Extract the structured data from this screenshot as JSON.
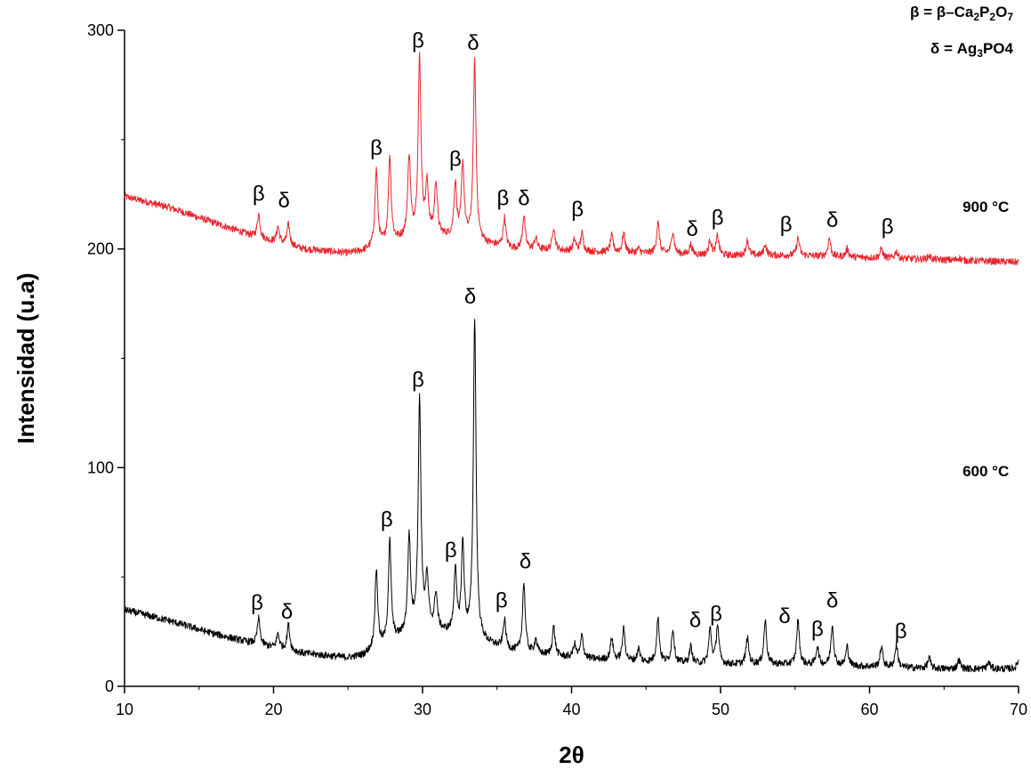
{
  "chart_data": {
    "type": "line",
    "title": "",
    "xlabel": "2θ",
    "ylabel": "Intensidad (u.a)",
    "xlim": [
      10,
      70
    ],
    "ylim": [
      0,
      300
    ],
    "x_ticks": [
      "10",
      "20",
      "30",
      "40",
      "50",
      "60",
      "70"
    ],
    "y_ticks": [
      "0",
      "100",
      "200",
      "300"
    ],
    "legend": {
      "beta": {
        "symbol": "β",
        "equals": "=",
        "prefix": "β–Ca",
        "s1": "2",
        "mid1": "P",
        "s2": "2",
        "mid2": "O",
        "s3": "7"
      },
      "delta": {
        "symbol": "δ",
        "equals": "= Ag",
        "s1": "3",
        "rest": "PO4"
      }
    },
    "series": [
      {
        "name": "900 °C",
        "color": "#e8262e",
        "baseline": [
          [
            10,
            224
          ],
          [
            13,
            219
          ],
          [
            16,
            212
          ],
          [
            19,
            205
          ],
          [
            22,
            200
          ],
          [
            25,
            198
          ],
          [
            26,
            199
          ],
          [
            30,
            207
          ],
          [
            33,
            204
          ],
          [
            36,
            200
          ],
          [
            40,
            199
          ],
          [
            45,
            198
          ],
          [
            50,
            197
          ],
          [
            55,
            197
          ],
          [
            60,
            196
          ],
          [
            65,
            195
          ],
          [
            70,
            194
          ]
        ],
        "peaks": [
          [
            19,
            216
          ],
          [
            20.3,
            210
          ],
          [
            21,
            211
          ],
          [
            26.9,
            236
          ],
          [
            27.8,
            242
          ],
          [
            29.1,
            242
          ],
          [
            29.8,
            287
          ],
          [
            30.3,
            228
          ],
          [
            30.9,
            230
          ],
          [
            32.2,
            229
          ],
          [
            32.7,
            238
          ],
          [
            33.5,
            285
          ],
          [
            35.5,
            214
          ],
          [
            36.8,
            215
          ],
          [
            37.6,
            205
          ],
          [
            38.8,
            210
          ],
          [
            40.2,
            204
          ],
          [
            40.7,
            207
          ],
          [
            42.7,
            206
          ],
          [
            43.5,
            207
          ],
          [
            44.5,
            200
          ],
          [
            45.8,
            212
          ],
          [
            46.8,
            208
          ],
          [
            48,
            202
          ],
          [
            49.3,
            204
          ],
          [
            49.8,
            206
          ],
          [
            51.8,
            204
          ],
          [
            53,
            202
          ],
          [
            55.2,
            205
          ],
          [
            57.3,
            205
          ],
          [
            58.5,
            200
          ],
          [
            60.8,
            200
          ],
          [
            61.8,
            199
          ],
          [
            64,
            197
          ],
          [
            66,
            196
          ]
        ]
      },
      {
        "name": "600 °C",
        "color": "#000000",
        "baseline": [
          [
            10,
            35
          ],
          [
            13,
            30
          ],
          [
            16,
            24
          ],
          [
            19,
            19
          ],
          [
            22,
            15
          ],
          [
            25,
            13
          ],
          [
            26,
            14
          ],
          [
            30,
            27
          ],
          [
            33,
            22
          ],
          [
            36,
            16
          ],
          [
            40,
            13
          ],
          [
            45,
            11
          ],
          [
            50,
            10
          ],
          [
            55,
            10
          ],
          [
            60,
            9
          ],
          [
            65,
            8
          ],
          [
            70,
            8
          ]
        ],
        "peaks": [
          [
            19,
            31
          ],
          [
            20.3,
            24
          ],
          [
            21,
            28
          ],
          [
            26.9,
            53
          ],
          [
            27.8,
            66
          ],
          [
            29.1,
            68
          ],
          [
            29.8,
            130
          ],
          [
            30.3,
            48
          ],
          [
            30.9,
            42
          ],
          [
            32.2,
            52
          ],
          [
            32.7,
            64
          ],
          [
            33.5,
            168
          ],
          [
            35.5,
            30
          ],
          [
            36.8,
            47
          ],
          [
            37.6,
            21
          ],
          [
            38.8,
            27
          ],
          [
            40.2,
            19
          ],
          [
            40.7,
            23
          ],
          [
            42.7,
            22
          ],
          [
            43.5,
            26
          ],
          [
            44.5,
            17
          ],
          [
            45.8,
            31
          ],
          [
            46.8,
            26
          ],
          [
            48,
            18
          ],
          [
            49.3,
            26
          ],
          [
            49.8,
            28
          ],
          [
            51.8,
            22
          ],
          [
            53,
            30
          ],
          [
            55.2,
            30
          ],
          [
            56.5,
            18
          ],
          [
            57.5,
            28
          ],
          [
            58.5,
            18
          ],
          [
            60.8,
            18
          ],
          [
            61.8,
            19
          ],
          [
            64,
            13
          ],
          [
            66,
            12
          ],
          [
            68,
            11
          ],
          [
            70,
            12
          ]
        ]
      }
    ],
    "annotations": [
      {
        "text": "β",
        "x": 19,
        "y": 222
      },
      {
        "text": "δ",
        "x": 20.7,
        "y": 219
      },
      {
        "text": "β",
        "x": 26.9,
        "y": 243
      },
      {
        "text": "β",
        "x": 29.7,
        "y": 292
      },
      {
        "text": "β",
        "x": 32.2,
        "y": 238
      },
      {
        "text": "δ",
        "x": 33.4,
        "y": 291
      },
      {
        "text": "β",
        "x": 35.4,
        "y": 220
      },
      {
        "text": "δ",
        "x": 36.8,
        "y": 220
      },
      {
        "text": "β",
        "x": 40.4,
        "y": 215
      },
      {
        "text": "δ",
        "x": 48.1,
        "y": 206
      },
      {
        "text": "β",
        "x": 49.8,
        "y": 211
      },
      {
        "text": "β",
        "x": 54.4,
        "y": 208
      },
      {
        "text": "δ",
        "x": 57.5,
        "y": 210
      },
      {
        "text": "β",
        "x": 61.2,
        "y": 207
      },
      {
        "text": "β",
        "x": 18.9,
        "y": 35
      },
      {
        "text": "δ",
        "x": 20.9,
        "y": 31
      },
      {
        "text": "β",
        "x": 27.6,
        "y": 73
      },
      {
        "text": "β",
        "x": 29.7,
        "y": 137
      },
      {
        "text": "β",
        "x": 31.9,
        "y": 59
      },
      {
        "text": "δ",
        "x": 33.2,
        "y": 175
      },
      {
        "text": "β",
        "x": 35.3,
        "y": 36
      },
      {
        "text": "δ",
        "x": 36.9,
        "y": 54
      },
      {
        "text": "δ",
        "x": 48.3,
        "y": 27
      },
      {
        "text": "β",
        "x": 49.7,
        "y": 30
      },
      {
        "text": "δ",
        "x": 54.3,
        "y": 29
      },
      {
        "text": "β",
        "x": 56.5,
        "y": 23
      },
      {
        "text": "δ",
        "x": 57.5,
        "y": 36
      },
      {
        "text": "β",
        "x": 62.1,
        "y": 22
      }
    ],
    "series_labels": [
      {
        "text": "900 °C",
        "x": 67.8,
        "y": 217
      },
      {
        "text": "600 °C",
        "x": 67.8,
        "y": 96
      }
    ],
    "grid": false
  }
}
